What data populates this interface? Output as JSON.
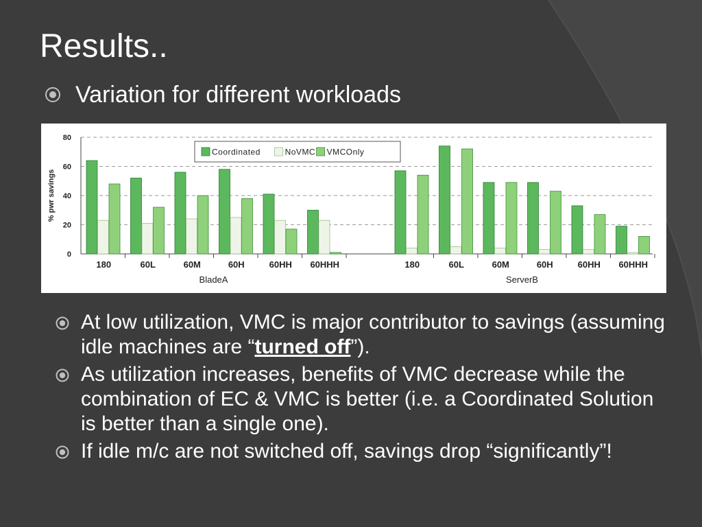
{
  "slide": {
    "title": "Results..",
    "subtitle": "Variation for different workloads"
  },
  "colors": {
    "background": "#3c3c3c",
    "text": "#ffffff",
    "coordinated": "#5cb85c",
    "novmc": "#eef5e8",
    "vmconly": "#8fd07a"
  },
  "chart_data": {
    "type": "bar",
    "ylabel": "% pwr savings",
    "ylim": [
      0,
      80
    ],
    "yticks": [
      0,
      20,
      40,
      60,
      80
    ],
    "grid": true,
    "legend_position": "top",
    "series_names": [
      "Coordinated",
      "NoVMC",
      "VMCOnly"
    ],
    "groups": [
      {
        "name": "BladeA",
        "categories": [
          "180",
          "60L",
          "60M",
          "60H",
          "60HH",
          "60HHH"
        ],
        "series": [
          {
            "name": "Coordinated",
            "values": [
              64,
              52,
              56,
              58,
              41,
              30
            ]
          },
          {
            "name": "NoVMC",
            "values": [
              23,
              21,
              24,
              25,
              23,
              23
            ]
          },
          {
            "name": "VMCOnly",
            "values": [
              48,
              32,
              40,
              38,
              17,
              1
            ]
          }
        ]
      },
      {
        "name": "ServerB",
        "categories": [
          "180",
          "60L",
          "60M",
          "60H",
          "60HH",
          "60HHH"
        ],
        "series": [
          {
            "name": "Coordinated",
            "values": [
              57,
              74,
              49,
              49,
              33,
              19
            ]
          },
          {
            "name": "NoVMC",
            "values": [
              4,
              5,
              4,
              3,
              3,
              1
            ]
          },
          {
            "name": "VMCOnly",
            "values": [
              54,
              72,
              49,
              43,
              27,
              12
            ]
          }
        ]
      }
    ]
  },
  "bullets": [
    {
      "before": "At low utilization, VMC is major contributor to savings (assuming idle machines are “",
      "emph": "turned off",
      "after": "”)."
    },
    {
      "before": "As utilization increases, benefits of VMC decrease while the combination of EC & VMC is better (i.e. a Coordinated Solution is better than a single one).",
      "emph": "",
      "after": ""
    },
    {
      "before": "If idle m/c are not switched off, savings drop “significantly”!",
      "emph": "",
      "after": ""
    }
  ]
}
